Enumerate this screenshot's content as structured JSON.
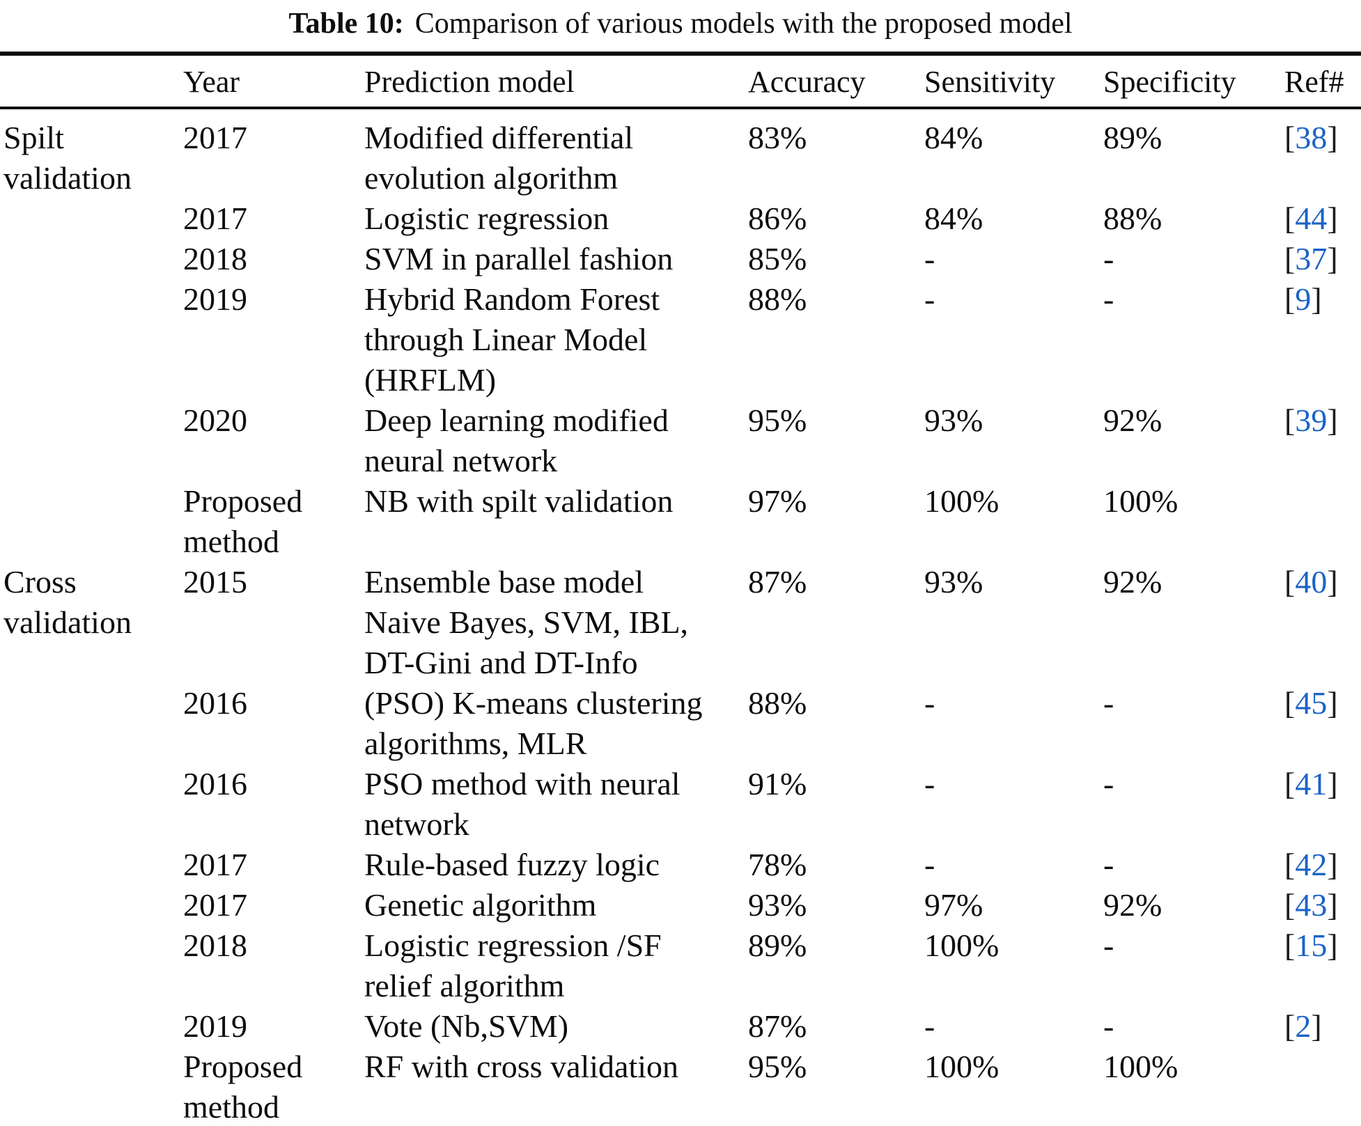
{
  "caption": {
    "label": "Table 10:",
    "text": "Comparison of various models with the proposed model"
  },
  "colors": {
    "text": "#0d0d0d",
    "ref_link": "#1c63c8"
  },
  "table": {
    "columns": [
      "",
      "Year",
      "Prediction model",
      "Accuracy",
      "Sensitivity",
      "Specificity",
      "Ref#"
    ],
    "bracket_open": "[",
    "bracket_close": "]",
    "rows": [
      {
        "group": "Spilt\nvalidation",
        "year": "2017",
        "model": "Modified differential\nevolution algorithm",
        "accuracy": "83%",
        "sensitivity": "84%",
        "specificity": "89%",
        "ref": "38"
      },
      {
        "group": "",
        "year": "2017",
        "model": "Logistic regression",
        "accuracy": "86%",
        "sensitivity": "84%",
        "specificity": "88%",
        "ref": "44"
      },
      {
        "group": "",
        "year": "2018",
        "model": "SVM in parallel fashion",
        "accuracy": "85%",
        "sensitivity": "-",
        "specificity": "-",
        "ref": "37"
      },
      {
        "group": "",
        "year": "2019",
        "model": "Hybrid Random Forest\nthrough Linear Model\n(HRFLM)",
        "accuracy": "88%",
        "sensitivity": "-",
        "specificity": "-",
        "ref": "9"
      },
      {
        "group": "",
        "year": "2020",
        "model": "Deep learning modified\nneural network",
        "accuracy": "95%",
        "sensitivity": "93%",
        "specificity": "92%",
        "ref": "39"
      },
      {
        "group": "",
        "year": "Proposed\nmethod",
        "model": "NB with spilt validation",
        "accuracy": "97%",
        "sensitivity": "100%",
        "specificity": "100%",
        "ref": ""
      },
      {
        "group": "Cross\nvalidation",
        "year": "2015",
        "model": "Ensemble base model\nNaive Bayes, SVM, IBL,\nDT-Gini and DT-Info",
        "accuracy": "87%",
        "sensitivity": "93%",
        "specificity": "92%",
        "ref": "40"
      },
      {
        "group": "",
        "year": "2016",
        "model": "(PSO) K-means clustering\nalgorithms, MLR",
        "accuracy": "88%",
        "sensitivity": "-",
        "specificity": "-",
        "ref": "45"
      },
      {
        "group": "",
        "year": "2016",
        "model": "PSO method with neural\nnetwork",
        "accuracy": "91%",
        "sensitivity": "-",
        "specificity": "-",
        "ref": "41"
      },
      {
        "group": "",
        "year": "2017",
        "model": "Rule-based fuzzy logic",
        "accuracy": "78%",
        "sensitivity": "-",
        "specificity": "-",
        "ref": "42"
      },
      {
        "group": "",
        "year": "2017",
        "model": "Genetic algorithm",
        "accuracy": "93%",
        "sensitivity": "97%",
        "specificity": "92%",
        "ref": "43"
      },
      {
        "group": "",
        "year": "2018",
        "model": "Logistic regression /SF\nrelief algorithm",
        "accuracy": "89%",
        "sensitivity": "100%",
        "specificity": "-",
        "ref": "15"
      },
      {
        "group": "",
        "year": "2019",
        "model": "Vote (Nb,SVM)",
        "accuracy": "87%",
        "sensitivity": "-",
        "specificity": "-",
        "ref": "2"
      },
      {
        "group": "",
        "year": "Proposed\nmethod",
        "model": "RF with cross validation",
        "accuracy": "95%",
        "sensitivity": "100%",
        "specificity": "100%",
        "ref": ""
      }
    ]
  }
}
